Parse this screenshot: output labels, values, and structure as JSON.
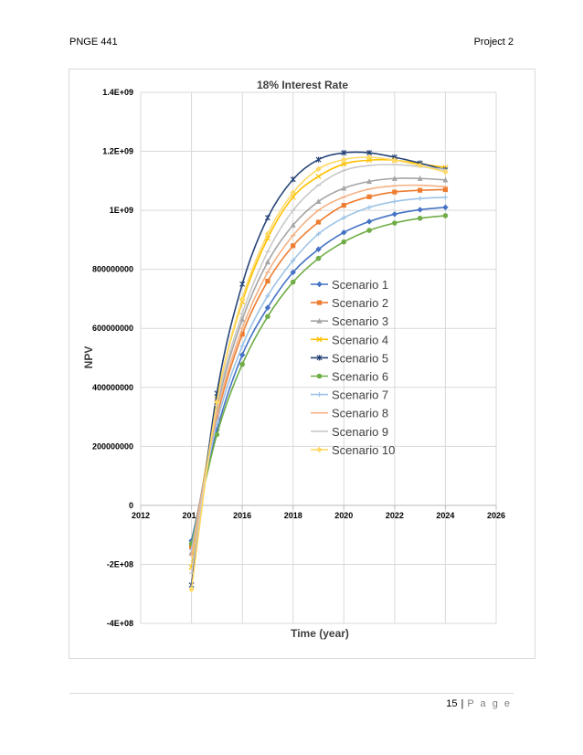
{
  "header": {
    "left": "PNGE 441",
    "right": "Project 2"
  },
  "footer": {
    "page_number": "15",
    "separator": "|",
    "page_word": "P a g e"
  },
  "chart_data": {
    "type": "line",
    "title": "18% Interest Rate",
    "xlabel": "Time (year)",
    "ylabel": "NPV",
    "xlim": [
      2012,
      2026
    ],
    "ylim": [
      -400000000,
      1400000000
    ],
    "x_ticks": [
      2012,
      2014,
      2016,
      2018,
      2020,
      2022,
      2024,
      2026
    ],
    "y_ticks": [
      {
        "value": -400000000,
        "label": "-4E+08"
      },
      {
        "value": -200000000,
        "label": "-2E+08"
      },
      {
        "value": 0,
        "label": "0"
      },
      {
        "value": 200000000,
        "label": "200000000"
      },
      {
        "value": 400000000,
        "label": "400000000"
      },
      {
        "value": 600000000,
        "label": "600000000"
      },
      {
        "value": 800000000,
        "label": "800000000"
      },
      {
        "value": 1000000000,
        "label": "1E+09"
      },
      {
        "value": 1200000000,
        "label": "1.2E+09"
      },
      {
        "value": 1400000000,
        "label": "1.4E+09"
      }
    ],
    "grid": "vertical and horizontal major gridlines",
    "legend_position": "center-right, inside plot",
    "x": [
      2014,
      2015,
      2016,
      2017,
      2018,
      2019,
      2020,
      2021,
      2022,
      2023,
      2024
    ],
    "series": [
      {
        "name": "Scenario 1",
        "color": "#4472C4",
        "marker": "diamond",
        "values": [
          -120000000,
          255000000,
          510000000,
          670000000,
          790000000,
          868000000,
          925000000,
          962000000,
          987000000,
          1002000000,
          1010000000
        ]
      },
      {
        "name": "Scenario 2",
        "color": "#ED7D31",
        "marker": "square",
        "values": [
          -140000000,
          300000000,
          580000000,
          760000000,
          880000000,
          960000000,
          1017000000,
          1046000000,
          1062000000,
          1068000000,
          1070000000
        ]
      },
      {
        "name": "Scenario 3",
        "color": "#A5A5A5",
        "marker": "triangle",
        "values": [
          -160000000,
          330000000,
          630000000,
          825000000,
          950000000,
          1030000000,
          1075000000,
          1098000000,
          1108000000,
          1108000000,
          1103000000
        ]
      },
      {
        "name": "Scenario 4",
        "color": "#FFC000",
        "marker": "x",
        "values": [
          -210000000,
          360000000,
          690000000,
          905000000,
          1045000000,
          1115000000,
          1157000000,
          1170000000,
          1170000000,
          1158000000,
          1145000000
        ]
      },
      {
        "name": "Scenario 5",
        "color": "#264478",
        "marker": "star",
        "values": [
          -270000000,
          380000000,
          750000000,
          975000000,
          1105000000,
          1172000000,
          1195000000,
          1195000000,
          1180000000,
          1160000000,
          1137000000
        ]
      },
      {
        "name": "Scenario 6",
        "color": "#70AD47",
        "marker": "circle",
        "values": [
          -130000000,
          240000000,
          478000000,
          640000000,
          757000000,
          837000000,
          893000000,
          932000000,
          957000000,
          973000000,
          982000000
        ]
      },
      {
        "name": "Scenario 7",
        "color": "#9DC3E6",
        "marker": "plus",
        "values": [
          -150000000,
          280000000,
          540000000,
          710000000,
          830000000,
          920000000,
          975000000,
          1010000000,
          1030000000,
          1040000000,
          1044000000
        ]
      },
      {
        "name": "Scenario 8",
        "color": "#F4B183",
        "marker": "dash",
        "values": [
          -170000000,
          310000000,
          600000000,
          790000000,
          915000000,
          1000000000,
          1045000000,
          1072000000,
          1083000000,
          1085000000,
          1080000000
        ]
      },
      {
        "name": "Scenario 9",
        "color": "#C9C9C9",
        "marker": "dash",
        "values": [
          -230000000,
          340000000,
          650000000,
          860000000,
          1000000000,
          1085000000,
          1135000000,
          1152000000,
          1155000000,
          1148000000,
          1138000000
        ]
      },
      {
        "name": "Scenario 10",
        "color": "#FFD966",
        "marker": "diamond",
        "values": [
          -285000000,
          350000000,
          700000000,
          920000000,
          1060000000,
          1140000000,
          1172000000,
          1180000000,
          1170000000,
          1152000000,
          1130000000
        ]
      }
    ]
  }
}
